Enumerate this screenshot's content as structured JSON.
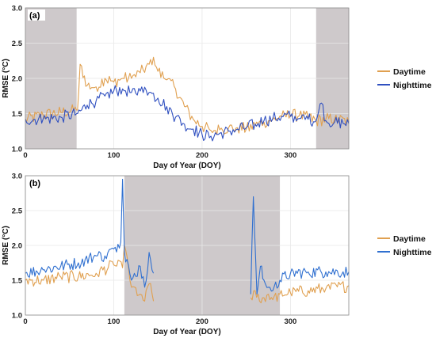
{
  "chart_data": [
    {
      "type": "line",
      "panel_label": "(a)",
      "xlabel": "Day of Year (DOY)",
      "ylabel": "RMSE (°C)",
      "xlim": [
        0,
        366
      ],
      "ylim": [
        1.0,
        3.0
      ],
      "xticks": [
        0,
        100,
        200,
        300
      ],
      "yticks": [
        "1.0",
        "1.5",
        "2.0",
        "2.5",
        "3.0"
      ],
      "shaded_ranges": [
        [
          0,
          58
        ],
        [
          329,
          366
        ]
      ],
      "legend_position": "right",
      "series": [
        {
          "name": "Daytime",
          "color": "#E0A050",
          "x": [
            0,
            20,
            40,
            58,
            59,
            62,
            70,
            80,
            90,
            100,
            110,
            120,
            130,
            140,
            145,
            150,
            160,
            170,
            180,
            190,
            200,
            210,
            220,
            230,
            240,
            250,
            260,
            270,
            280,
            290,
            300,
            310,
            320,
            329,
            340,
            350,
            366
          ],
          "y": [
            1.42,
            1.48,
            1.52,
            1.55,
            1.55,
            2.2,
            1.9,
            1.88,
            2.0,
            1.95,
            2.0,
            2.0,
            2.08,
            2.2,
            2.3,
            2.1,
            1.98,
            1.85,
            1.6,
            1.42,
            1.32,
            1.26,
            1.27,
            1.3,
            1.3,
            1.28,
            1.33,
            1.38,
            1.42,
            1.46,
            1.48,
            1.47,
            1.44,
            1.4,
            1.42,
            1.43,
            1.38
          ]
        },
        {
          "name": "Nighttime",
          "color": "#3050C0",
          "x": [
            0,
            20,
            40,
            58,
            59,
            70,
            80,
            90,
            100,
            110,
            120,
            130,
            140,
            150,
            160,
            170,
            180,
            190,
            200,
            210,
            220,
            230,
            240,
            250,
            260,
            270,
            280,
            290,
            300,
            310,
            320,
            329,
            335,
            340,
            350,
            366
          ],
          "y": [
            1.42,
            1.42,
            1.45,
            1.5,
            1.5,
            1.62,
            1.68,
            1.75,
            1.82,
            1.85,
            1.8,
            1.82,
            1.8,
            1.72,
            1.6,
            1.45,
            1.35,
            1.28,
            1.2,
            1.18,
            1.22,
            1.25,
            1.28,
            1.3,
            1.35,
            1.4,
            1.43,
            1.46,
            1.46,
            1.43,
            1.42,
            1.4,
            1.65,
            1.4,
            1.38,
            1.36
          ]
        }
      ]
    },
    {
      "type": "line",
      "panel_label": "(b)",
      "xlabel": "Day of Year (DOY)",
      "ylabel": "RMSE (°C)",
      "xlim": [
        0,
        366
      ],
      "ylim": [
        1.0,
        3.0
      ],
      "xticks": [
        0,
        100,
        200,
        300
      ],
      "yticks": [
        "1.0",
        "1.5",
        "2.0",
        "2.5",
        "3.0"
      ],
      "shaded_ranges": [
        [
          112,
          288
        ]
      ],
      "legend_position": "right",
      "series": [
        {
          "name": "Daytime",
          "color": "#E0A050",
          "x": [
            0,
            20,
            40,
            60,
            80,
            100,
            110,
            112,
            120,
            130,
            135,
            140,
            145,
            255,
            260,
            265,
            270,
            275,
            280,
            288,
            300,
            320,
            340,
            366
          ],
          "y": [
            1.5,
            1.5,
            1.55,
            1.55,
            1.6,
            1.72,
            1.68,
            2.0,
            1.4,
            1.3,
            1.2,
            1.45,
            1.2,
            1.25,
            1.35,
            1.2,
            1.25,
            1.3,
            1.22,
            1.3,
            1.32,
            1.35,
            1.38,
            1.42
          ]
        },
        {
          "name": "Nighttime",
          "color": "#3070D0",
          "x": [
            0,
            20,
            40,
            60,
            80,
            90,
            100,
            108,
            110,
            112,
            115,
            120,
            130,
            135,
            140,
            145,
            255,
            258,
            262,
            266,
            270,
            275,
            280,
            288,
            300,
            320,
            340,
            366
          ],
          "y": [
            1.6,
            1.65,
            1.7,
            1.75,
            1.85,
            1.85,
            1.95,
            2.05,
            2.95,
            1.9,
            1.8,
            1.5,
            1.7,
            1.4,
            1.9,
            1.6,
            1.3,
            2.7,
            1.3,
            1.7,
            1.5,
            1.4,
            1.35,
            1.5,
            1.6,
            1.62,
            1.62,
            1.62
          ]
        }
      ]
    }
  ]
}
